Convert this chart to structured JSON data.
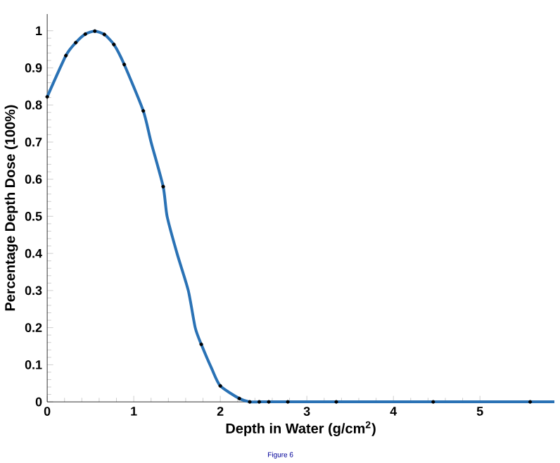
{
  "chart_data": {
    "type": "line",
    "xlabel": "Depth in Water (g/cm$^{2}$)",
    "ylabel": "Percentage Depth Dose (100%)",
    "annotations": [
      "Figure 6"
    ],
    "xlim": [
      0,
      5.86
    ],
    "ylim": [
      0,
      1.045
    ],
    "xticks": [
      0,
      1,
      2,
      3,
      4,
      5
    ],
    "yticks": [
      0,
      0.1,
      0.2,
      0.3,
      0.4,
      0.5,
      0.6,
      0.7,
      0.8,
      0.9,
      1
    ],
    "grid": false,
    "series": [
      {
        "color": "#2a72b5",
        "line_style": "solid",
        "marker": "none",
        "x": [
          0,
          0.216,
          0.33,
          0.44,
          0.55,
          0.66,
          0.77,
          0.89,
          1.11,
          1.2,
          1.34,
          1.385,
          1.5,
          1.63,
          1.71,
          1.78,
          1.9,
          2.0,
          2.22,
          2.34,
          2.45,
          2.56,
          2.78,
          3.34,
          4.46,
          5.58,
          5.86
        ],
        "values": [
          0.822,
          0.933,
          0.968,
          0.991,
          0.999,
          0.99,
          0.963,
          0.909,
          0.784,
          0.7,
          0.58,
          0.5,
          0.4,
          0.3,
          0.2,
          0.155,
          0.09,
          0.043,
          0.009,
          0,
          0,
          0,
          0,
          0,
          0,
          0,
          0
        ]
      },
      {
        "type": "scatter",
        "color": "#000000",
        "marker": "circle",
        "x": [
          0,
          0.216,
          0.33,
          0.44,
          0.55,
          0.66,
          0.77,
          0.89,
          1.11,
          1.34,
          1.78,
          2.0,
          2.22,
          2.34,
          2.45,
          2.56,
          2.78,
          3.34,
          4.46,
          5.58
        ],
        "values": [
          0.822,
          0.933,
          0.968,
          0.991,
          0.999,
          0.99,
          0.963,
          0.909,
          0.784,
          0.58,
          0.155,
          0.043,
          0.009,
          0,
          0,
          0,
          0,
          0,
          0,
          0
        ]
      }
    ]
  }
}
